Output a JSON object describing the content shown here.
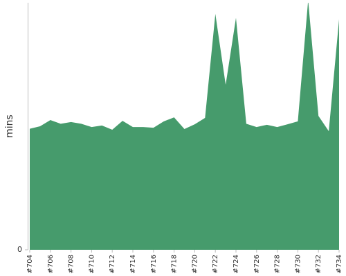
{
  "chart_data": {
    "type": "area",
    "y_label": "mins",
    "categories": [
      "#704",
      null,
      "#706",
      null,
      "#708",
      null,
      "#710",
      null,
      "#712",
      null,
      "#714",
      null,
      "#716",
      null,
      "#718",
      null,
      "#720",
      null,
      "#722",
      null,
      "#724",
      null,
      "#726",
      null,
      "#728",
      null,
      "#730",
      null,
      "#732",
      null,
      "#734"
    ],
    "values": [
      49,
      50,
      52.5,
      51,
      51.7,
      51,
      49.7,
      50.3,
      48.6,
      52.2,
      49.7,
      49.7,
      49.4,
      52,
      53.6,
      48.9,
      50.8,
      53.4,
      95.5,
      66.8,
      93.9,
      51,
      49.7,
      50.6,
      49.7,
      50.8,
      52,
      101,
      54.2,
      48,
      93.3
    ],
    "color": "#469b6c",
    "ylim": [
      0,
      100
    ],
    "yticks": [
      0
    ]
  }
}
